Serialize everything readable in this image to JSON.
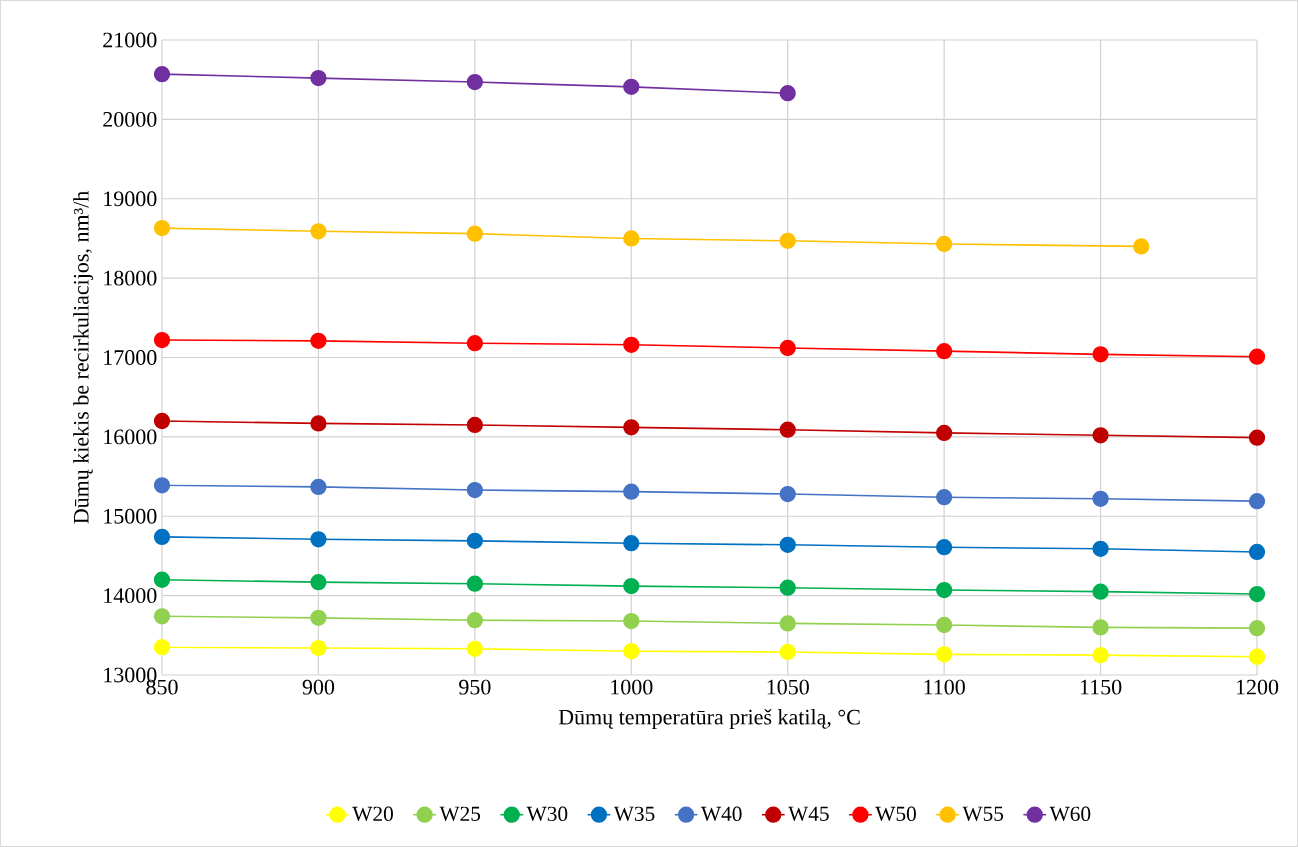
{
  "chart_data": {
    "type": "line",
    "xlabel": "Dūmų temperatūra prieš katilą, °C",
    "ylabel": "Dūmų kiekis be recirkuliacijos, nm³/h",
    "x": [
      850,
      900,
      950,
      1000,
      1050,
      1100,
      1150,
      1200
    ],
    "xlim": [
      850,
      1200
    ],
    "xticks": [
      850,
      900,
      950,
      1000,
      1050,
      1100,
      1150,
      1200
    ],
    "ylim": [
      13000,
      21000
    ],
    "yticks": [
      13000,
      14000,
      15000,
      16000,
      17000,
      18000,
      19000,
      20000,
      21000
    ],
    "grid": true,
    "legend": "bottom",
    "marker": "circle",
    "line_style": "solid",
    "series": [
      {
        "name": "W20",
        "color": "#ffff00",
        "values": [
          13350,
          13340,
          13330,
          13300,
          13290,
          13260,
          13250,
          13230
        ]
      },
      {
        "name": "W25",
        "color": "#92d050",
        "values": [
          13740,
          13720,
          13690,
          13680,
          13650,
          13630,
          13600,
          13590
        ]
      },
      {
        "name": "W30",
        "color": "#00b050",
        "values": [
          14200,
          14170,
          14150,
          14120,
          14100,
          14070,
          14050,
          14020
        ]
      },
      {
        "name": "W35",
        "color": "#0070c0",
        "values": [
          14740,
          14710,
          14690,
          14660,
          14640,
          14610,
          14590,
          14550
        ]
      },
      {
        "name": "W40",
        "color": "#4472c4",
        "values": [
          15390,
          15370,
          15330,
          15310,
          15280,
          15240,
          15220,
          15190
        ]
      },
      {
        "name": "W45",
        "color": "#c00000",
        "values": [
          16200,
          16170,
          16150,
          16120,
          16090,
          16050,
          16020,
          15990
        ]
      },
      {
        "name": "W50",
        "color": "#ff0000",
        "values": [
          17220,
          17210,
          17180,
          17160,
          17120,
          17080,
          17040,
          17010
        ]
      },
      {
        "name": "W55",
        "color": "#ffc000",
        "x": [
          850,
          900,
          950,
          1000,
          1050,
          1100,
          1163
        ],
        "values": [
          18630,
          18590,
          18560,
          18500,
          18470,
          18430,
          18400
        ]
      },
      {
        "name": "W60",
        "color": "#7030a0",
        "x": [
          850,
          900,
          950,
          1000,
          1050
        ],
        "values": [
          20570,
          20520,
          20470,
          20410,
          20330
        ]
      }
    ]
  }
}
